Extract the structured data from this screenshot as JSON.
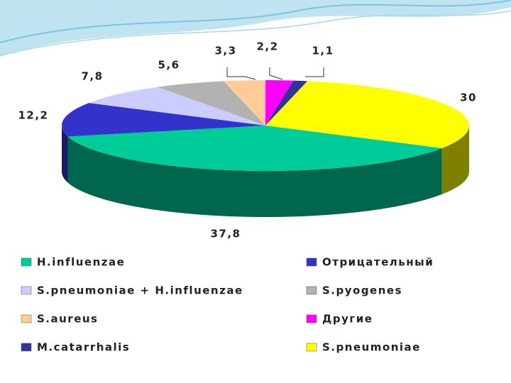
{
  "chart_data": {
    "type": "pie3d",
    "categories": [
      "H.influenzae",
      "Отрицательный",
      "S.pneumoniae + H.influenzae",
      "S.pyogenes",
      "S.aureus",
      "Другие",
      "M.catarrhalis",
      "S.pneumoniae"
    ],
    "values": [
      37.8,
      12.2,
      7.8,
      5.6,
      3.3,
      2.2,
      1.1,
      30
    ],
    "value_labels": [
      "37,8",
      "12,2",
      "7,8",
      "5,6",
      "3,3",
      "2,2",
      "1,1",
      "30"
    ],
    "colors": [
      "#00cc99",
      "#3333cc",
      "#ccccff",
      "#b2b2b2",
      "#ffcc99",
      "#ff00ff",
      "#333399",
      "#ffff00"
    ]
  }
}
